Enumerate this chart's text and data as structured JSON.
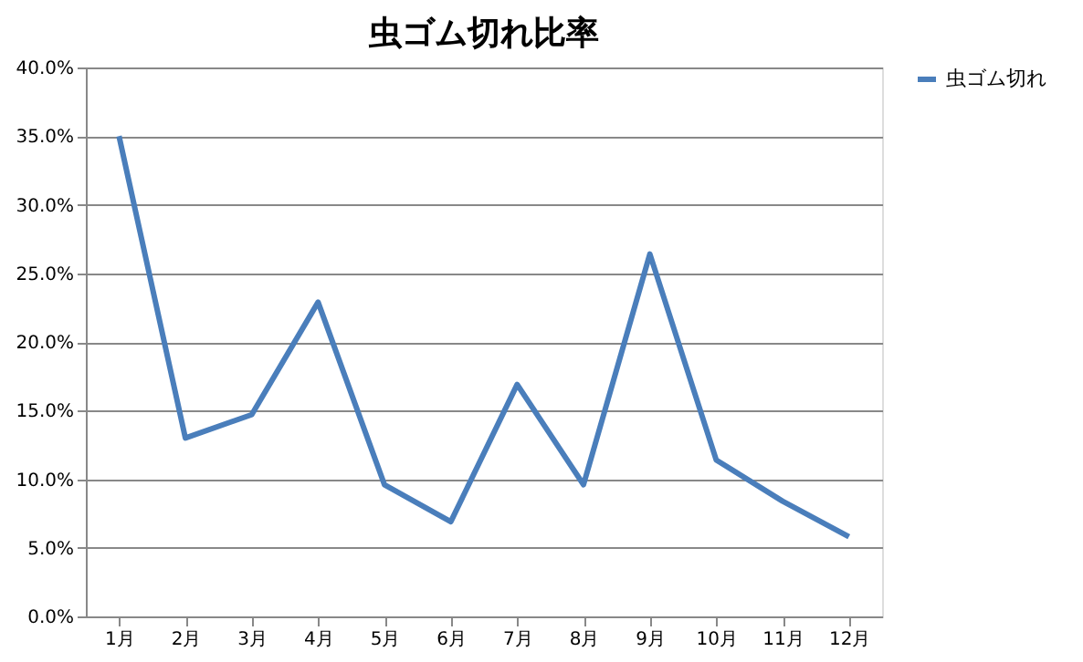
{
  "chart_data": {
    "type": "line",
    "title": "虫ゴム切れ比率",
    "categories": [
      "1月",
      "2月",
      "3月",
      "4月",
      "5月",
      "6月",
      "7月",
      "8月",
      "9月",
      "10月",
      "11月",
      "12月"
    ],
    "series": [
      {
        "name": "虫ゴム切れ",
        "color": "#4a7ebb",
        "values": [
          35.0,
          13.0,
          14.7,
          22.9,
          9.6,
          6.9,
          16.9,
          9.6,
          26.4,
          11.4,
          8.4,
          5.8
        ]
      }
    ],
    "ylim": [
      0,
      40
    ],
    "yticks": [
      {
        "value": 0,
        "label": "0.0%"
      },
      {
        "value": 5,
        "label": "5.0%"
      },
      {
        "value": 10,
        "label": "10.0%"
      },
      {
        "value": 15,
        "label": "15.0%"
      },
      {
        "value": 20,
        "label": "20.0%"
      },
      {
        "value": 25,
        "label": "25.0%"
      },
      {
        "value": 30,
        "label": "30.0%"
      },
      {
        "value": 35,
        "label": "35.0%"
      },
      {
        "value": 40,
        "label": "40.0%"
      }
    ],
    "grid": "y",
    "legend": "right",
    "marker": "none",
    "line_style": "solid"
  }
}
